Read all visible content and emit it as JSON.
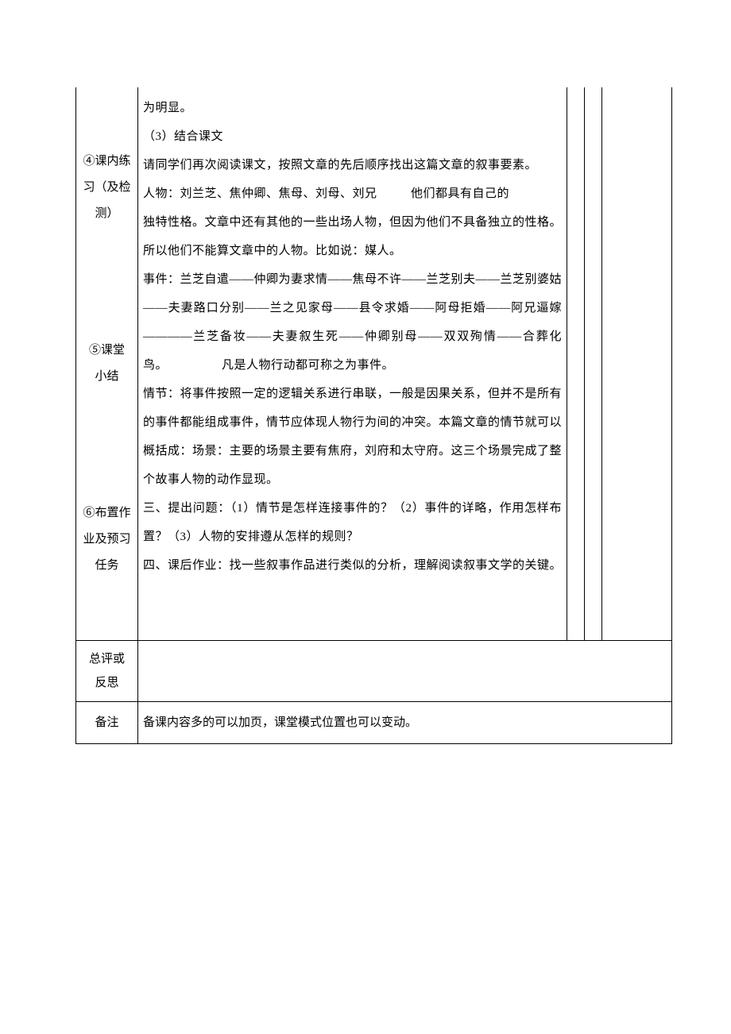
{
  "sideLabels": {
    "label1_line1": "④课内练",
    "label1_line2": "习（及检",
    "label1_line3": "测）",
    "label2_line1": "⑤课堂",
    "label2_line2": "小结",
    "label3_line1": "⑥布置作",
    "label3_line2": "业及预习",
    "label3_line3": "任务"
  },
  "mainContent": {
    "p1": "为明显。",
    "p2": "（3）结合课文",
    "p3": "请同学们再次阅读课文，按照文章的先后顺序找出这篇文章的叙事要素。",
    "p4_a": "人物：刘兰芝、焦仲卿、焦母、刘母、刘兄",
    "p4_b": "他们都具有自己的",
    "p5": "独特性格。文章中还有其他的一些出场人物，但因为他们不具备独立的性格。所以他们不能算文章中的人物。比如说：媒人。",
    "p6": "事件：兰芝自遣——仲卿为妻求情——焦母不许——兰芝别夫——兰芝别婆姑——夫妻路口分别——兰之见家母——县令求婚——阿母拒婚——阿兄逼嫁————兰芝备妆——夫妻叙生死——仲卿别母——双双殉情——合葬化鸟。",
    "p6_tail": "凡是人物行动都可称之为事件。",
    "p7": "情节：将事件按照一定的逻辑关系进行串联，一般是因果关系，但并不是所有的事件都能组成事件，情节应体现人物行为间的冲突。本篇文章的情节就可以概括成：场景：主要的场景主要有焦府，刘府和太守府。这三个场景完成了整个故事人物的动作显现。",
    "p8": "三、提出问题：（1）情节是怎样连接事件的？（2）事件的详略，作用怎样布置？（3）人物的安排遵从怎样的规则？",
    "p9": "四、课后作业：找一些叙事作品进行类似的分析，理解阅读叙事文学的关键。"
  },
  "row2": {
    "label_line1": "总评或",
    "label_line2": "反思"
  },
  "row3": {
    "label": "备注",
    "content": "备课内容多的可以加页，课堂模式位置也可以变动。"
  },
  "colors": {
    "border": "#000000",
    "background": "#ffffff",
    "text": "#000000"
  },
  "typography": {
    "fontFamily": "SimSun",
    "fontSize": 15,
    "lineHeight": 2.4
  }
}
